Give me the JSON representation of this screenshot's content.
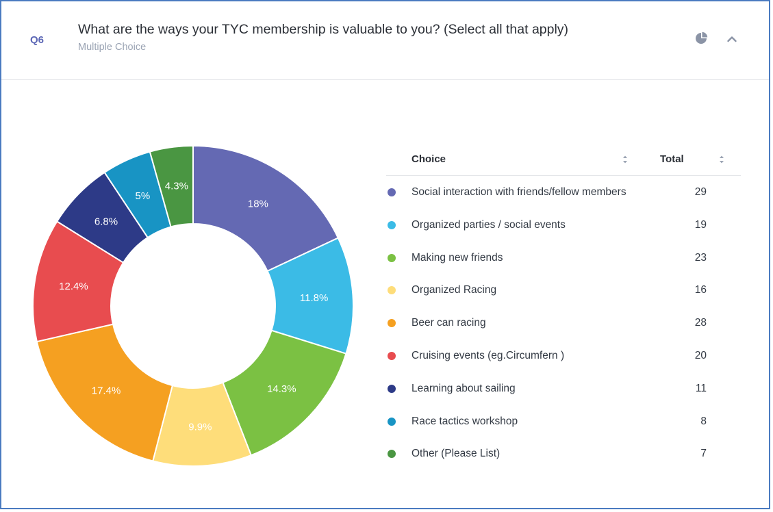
{
  "question": {
    "number": "Q6",
    "title": "What are the ways your TYC membership is valuable to you? (Select all that apply)",
    "type": "Multiple Choice"
  },
  "header_icons": {
    "chart_toggle": "pie-chart-icon",
    "collapse": "chevron-up-icon"
  },
  "table": {
    "col_choice": "Choice",
    "col_total": "Total",
    "rows": [
      {
        "label": "Social interaction with friends/fellow members",
        "total": "29",
        "color": "#6469b3"
      },
      {
        "label": "Organized parties / social events",
        "total": "19",
        "color": "#3bbbe6"
      },
      {
        "label": "Making new friends",
        "total": "23",
        "color": "#7bc143"
      },
      {
        "label": "Organized Racing",
        "total": "16",
        "color": "#fedd7a"
      },
      {
        "label": "Beer can racing",
        "total": "28",
        "color": "#f5a021"
      },
      {
        "label": "Cruising events (eg.Circumfern )",
        "total": "20",
        "color": "#e84c4f"
      },
      {
        "label": "Learning about sailing",
        "total": "11",
        "color": "#2d3a87"
      },
      {
        "label": "Race tactics workshop",
        "total": "8",
        "color": "#1894c4"
      },
      {
        "label": "Other (Please List)",
        "total": "7",
        "color": "#4a9642"
      }
    ]
  },
  "chart_data": {
    "type": "pie",
    "donut": true,
    "categories": [
      "Social interaction with friends/fellow members",
      "Organized parties / social events",
      "Making new friends",
      "Organized Racing",
      "Beer can racing",
      "Cruising events (eg.Circumfern )",
      "Learning about sailing",
      "Race tactics workshop",
      "Other (Please List)"
    ],
    "values": [
      29,
      19,
      23,
      16,
      28,
      20,
      11,
      8,
      7
    ],
    "labels": [
      "18%",
      "11.8%",
      "14.3%",
      "9.9%",
      "17.4%",
      "12.4%",
      "6.8%",
      "5%",
      "4.3%"
    ],
    "colors": [
      "#6469b3",
      "#3bbbe6",
      "#7bc143",
      "#fedd7a",
      "#f5a021",
      "#e84c4f",
      "#2d3a87",
      "#1894c4",
      "#4a9642"
    ],
    "label_colors": [
      "#ffffff",
      "#ffffff",
      "#ffffff",
      "#ffffff",
      "#ffffff",
      "#ffffff",
      "#ffffff",
      "#ffffff",
      "#ffffff"
    ]
  }
}
